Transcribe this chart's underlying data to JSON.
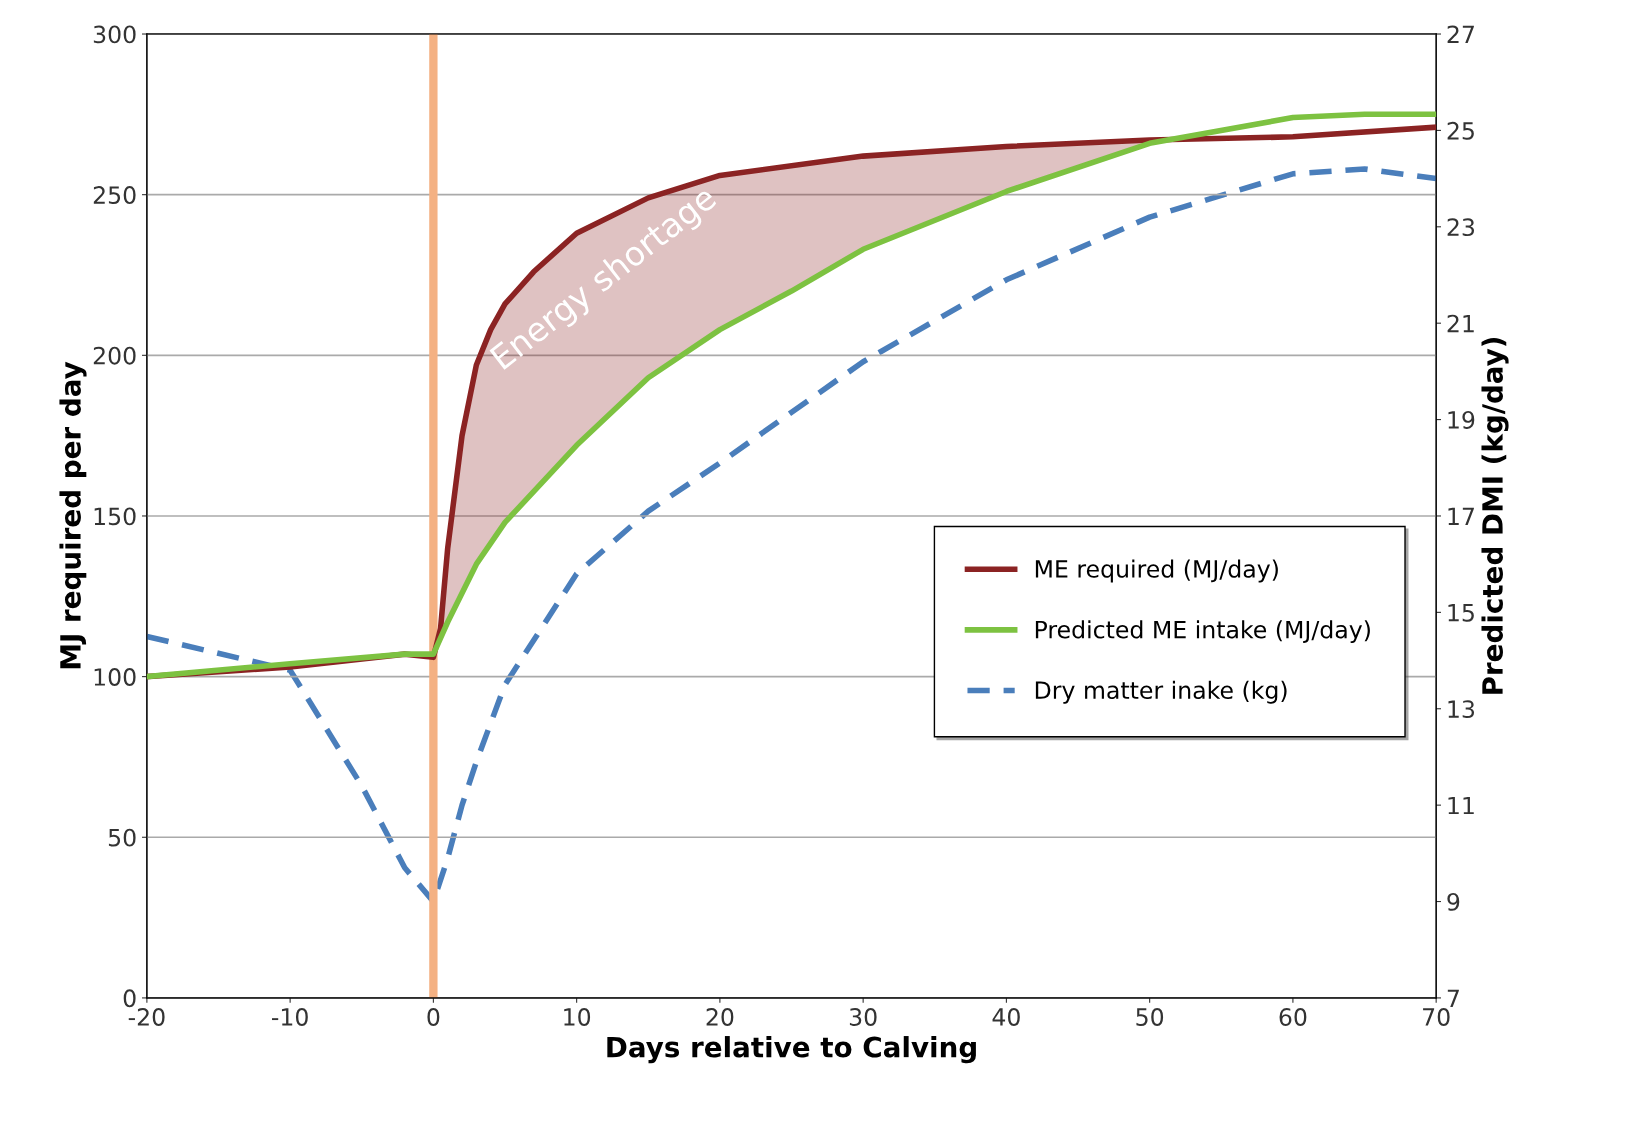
{
  "chart_data": {
    "type": "line",
    "xlabel": "Days relative to Calving",
    "ylabel": "MJ required per day",
    "y2label": "Predicted DMI (kg/day)",
    "xlim": [
      -20,
      70
    ],
    "xticks": [
      -20,
      -10,
      0,
      10,
      20,
      30,
      40,
      50,
      60,
      70
    ],
    "ylim": [
      0,
      300
    ],
    "yticks": [
      0,
      50,
      100,
      150,
      200,
      250,
      300
    ],
    "y2lim": [
      7,
      27
    ],
    "y2ticks": [
      7,
      9,
      11,
      13,
      15,
      17,
      19,
      21,
      23,
      25,
      27
    ],
    "grid": "y",
    "legend": "right",
    "series": [
      {
        "name": "ME required (MJ/day)",
        "color": "#8b2323",
        "line_style": "solid",
        "x": [
          -20,
          -10,
          -2,
          0,
          0.5,
          1,
          2,
          3,
          4,
          5,
          7,
          10,
          15,
          20,
          30,
          40,
          50,
          60,
          70
        ],
        "values": [
          100,
          103,
          107,
          106,
          115,
          140,
          175,
          197,
          208,
          216,
          226,
          238,
          249,
          256,
          262,
          265,
          267,
          268,
          271
        ],
        "lower": [
          null,
          null,
          null,
          107,
          112,
          117,
          126,
          135,
          142,
          148,
          158,
          172,
          193,
          208,
          233,
          251,
          266,
          null,
          null
        ],
        "upper": [
          null,
          null,
          null,
          106,
          115,
          140,
          175,
          197,
          208,
          216,
          226,
          238,
          249,
          256,
          262,
          265,
          267,
          null,
          null
        ]
      },
      {
        "name": "Predicted ME intake (MJ/day)",
        "color": "#7dc241",
        "line_style": "solid",
        "x": [
          -20,
          -10,
          -2,
          0,
          1,
          3,
          5,
          10,
          15,
          20,
          25,
          30,
          40,
          50,
          60,
          65,
          70
        ],
        "values": [
          100,
          104,
          107,
          107,
          117,
          135,
          148,
          172,
          193,
          208,
          220,
          233,
          251,
          266,
          274,
          275,
          275
        ]
      },
      {
        "name": "Dry matter inake (kg)",
        "color": "#4a7ebb",
        "line_style": "dashed",
        "axis": "y2",
        "x": [
          -20,
          -10,
          -5,
          -2,
          0,
          1,
          2,
          3,
          5,
          10,
          15,
          20,
          30,
          40,
          50,
          60,
          65,
          70
        ],
        "values": [
          14.5,
          13.8,
          11.4,
          9.7,
          9.0,
          9.9,
          11.0,
          11.9,
          13.5,
          15.8,
          17.1,
          18.1,
          20.2,
          21.9,
          23.2,
          24.1,
          24.2,
          24.0
        ]
      }
    ],
    "ref_lines": [
      {
        "axis": "x",
        "value": 0,
        "color": "#f4b183"
      }
    ],
    "annotations": [
      "Energy shortage"
    ]
  }
}
